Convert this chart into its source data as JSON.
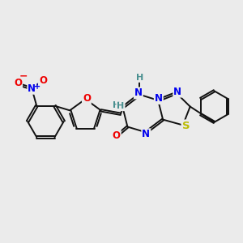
{
  "background_color": "#ebebeb",
  "figsize": [
    3.0,
    3.0
  ],
  "dpi": 100,
  "atom_colors": {
    "C": "#000000",
    "N": "#0000ee",
    "O": "#ee0000",
    "S": "#bbbb00",
    "H": "#4a9090"
  },
  "bond_color": "#111111",
  "bond_width": 1.4,
  "font_size_atom": 8.5,
  "xlim": [
    0,
    10
  ],
  "ylim": [
    0,
    10
  ]
}
